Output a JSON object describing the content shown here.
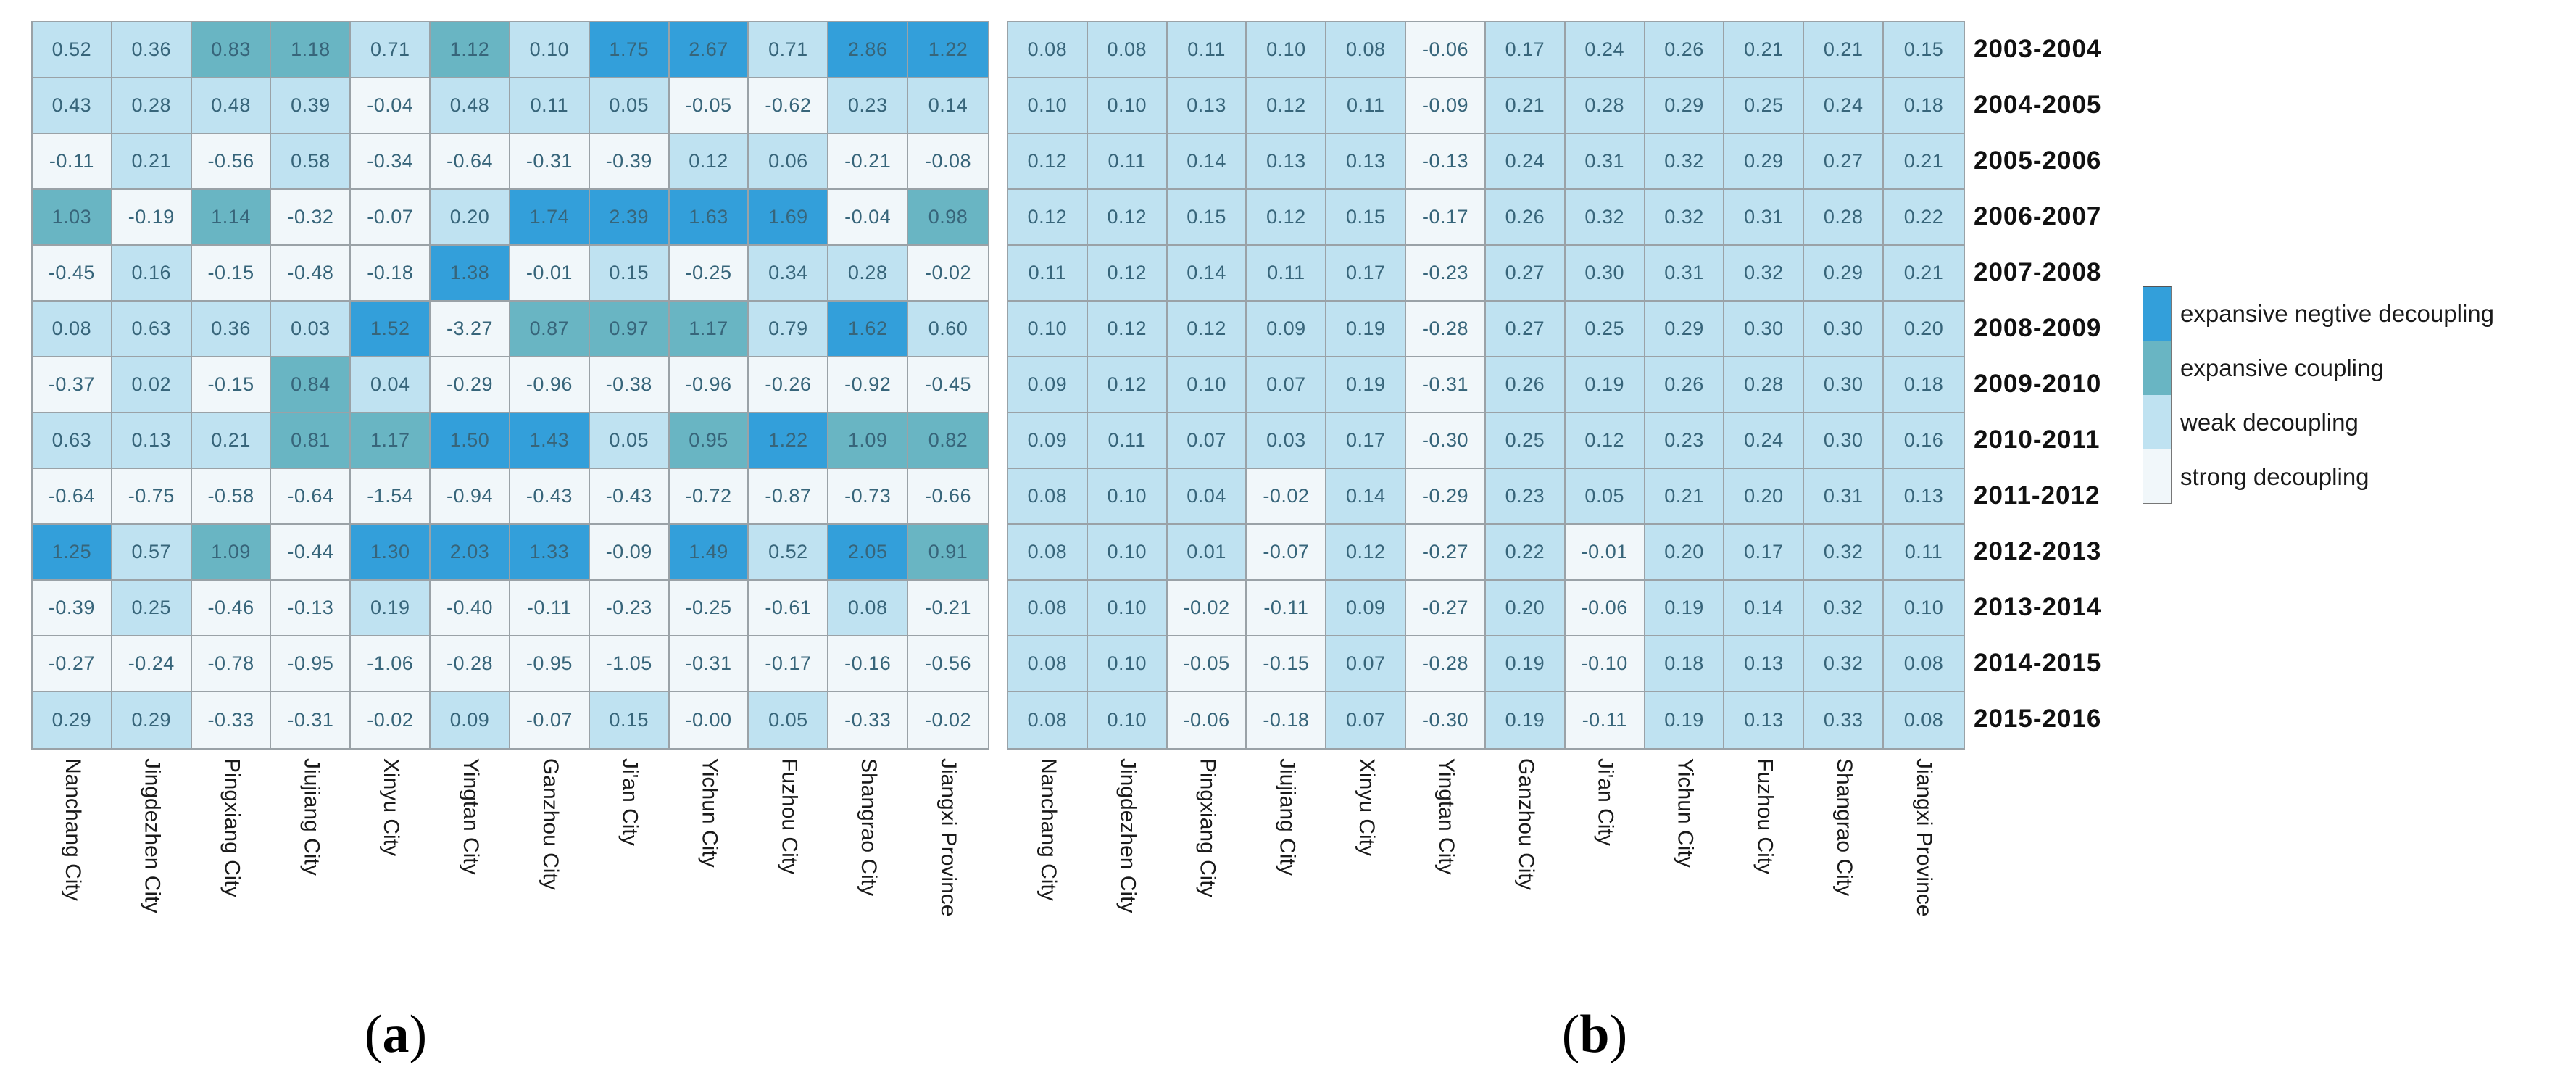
{
  "figure": {
    "captions": {
      "a": "(a)",
      "b": "(b)"
    },
    "colors": {
      "expansive_negtive_decoupling": "#339fda",
      "expansive_coupling": "#69b5c3",
      "weak_decoupling": "#bfe2f1",
      "strong_decoupling": "#f1f7fa",
      "grid_border": "#9aa2a7",
      "cell_text": "#37657a",
      "label_text": "#1a1a1a"
    },
    "category_colors": {
      "D": "#339fda",
      "T": "#69b5c3",
      "L": "#bfe2f1",
      "W": "#f1f7fa"
    },
    "category_labels": {
      "D": "expansive negtive decoupling",
      "T": "expansive coupling",
      "L": "weak decoupling",
      "W": "strong decoupling"
    },
    "legend": {
      "items": [
        {
          "label": "expansive negtive decoupling",
          "category": "D"
        },
        {
          "label": "expansive coupling",
          "category": "T"
        },
        {
          "label": "weak decoupling",
          "category": "L"
        },
        {
          "label": "strong decoupling",
          "category": "W"
        }
      ]
    }
  },
  "chart_data": [
    {
      "type": "heatmap",
      "id": "a",
      "title": "(a)",
      "columns": [
        "Nanchang City",
        "Jingdezhen City",
        "Pingxiang City",
        "Jiujiang City",
        "Xinyu City",
        "Yingtan City",
        "Ganzhou City",
        "Ji'an City",
        "Yichun City",
        "Fuzhou City",
        "Shangrao City",
        "Jiangxi Province"
      ],
      "rows": [
        "2003-2004",
        "2004-2005",
        "2005-2006",
        "2006-2007",
        "2007-2008",
        "2008-2009",
        "2009-2010",
        "2010-2011",
        "2011-2012",
        "2012-2013",
        "2013-2014",
        "2014-2015",
        "2015-2016"
      ],
      "values": [
        [
          "0.52",
          "0.36",
          "0.83",
          "1.18",
          "0.71",
          "1.12",
          "0.10",
          "1.75",
          "2.67",
          "0.71",
          "2.86",
          "1.22"
        ],
        [
          "0.43",
          "0.28",
          "0.48",
          "0.39",
          "-0.04",
          "0.48",
          "0.11",
          "0.05",
          "-0.05",
          "-0.62",
          "0.23",
          "0.14"
        ],
        [
          "-0.11",
          "0.21",
          "-0.56",
          "0.58",
          "-0.34",
          "-0.64",
          "-0.31",
          "-0.39",
          "0.12",
          "0.06",
          "-0.21",
          "-0.08"
        ],
        [
          "1.03",
          "-0.19",
          "1.14",
          "-0.32",
          "-0.07",
          "0.20",
          "1.74",
          "2.39",
          "1.63",
          "1.69",
          "-0.04",
          "0.98"
        ],
        [
          "-0.45",
          "0.16",
          "-0.15",
          "-0.48",
          "-0.18",
          "1.38",
          "-0.01",
          "0.15",
          "-0.25",
          "0.34",
          "0.28",
          "-0.02"
        ],
        [
          "0.08",
          "0.63",
          "0.36",
          "0.03",
          "1.52",
          "-3.27",
          "0.87",
          "0.97",
          "1.17",
          "0.79",
          "1.62",
          "0.60"
        ],
        [
          "-0.37",
          "0.02",
          "-0.15",
          "0.84",
          "0.04",
          "-0.29",
          "-0.96",
          "-0.38",
          "-0.96",
          "-0.26",
          "-0.92",
          "-0.45"
        ],
        [
          "0.63",
          "0.13",
          "0.21",
          "0.81",
          "1.17",
          "1.50",
          "1.43",
          "0.05",
          "0.95",
          "1.22",
          "1.09",
          "0.82"
        ],
        [
          "-0.64",
          "-0.75",
          "-0.58",
          "-0.64",
          "-1.54",
          "-0.94",
          "-0.43",
          "-0.43",
          "-0.72",
          "-0.87",
          "-0.73",
          "-0.66"
        ],
        [
          "1.25",
          "0.57",
          "1.09",
          "-0.44",
          "1.30",
          "2.03",
          "1.33",
          "-0.09",
          "1.49",
          "0.52",
          "2.05",
          "0.91"
        ],
        [
          "-0.39",
          "0.25",
          "-0.46",
          "-0.13",
          "0.19",
          "-0.40",
          "-0.11",
          "-0.23",
          "-0.25",
          "-0.61",
          "0.08",
          "-0.21"
        ],
        [
          "-0.27",
          "-0.24",
          "-0.78",
          "-0.95",
          "-1.06",
          "-0.28",
          "-0.95",
          "-1.05",
          "-0.31",
          "-0.17",
          "-0.16",
          "-0.56"
        ],
        [
          "0.29",
          "0.29",
          "-0.33",
          "-0.31",
          "-0.02",
          "0.09",
          "-0.07",
          "0.15",
          "-0.00",
          "0.05",
          "-0.33",
          "-0.02"
        ]
      ],
      "categories": [
        [
          "L",
          "L",
          "T",
          "T",
          "L",
          "T",
          "L",
          "D",
          "D",
          "L",
          "D",
          "D"
        ],
        [
          "L",
          "L",
          "L",
          "L",
          "W",
          "L",
          "L",
          "L",
          "W",
          "W",
          "L",
          "L"
        ],
        [
          "W",
          "L",
          "W",
          "L",
          "W",
          "W",
          "W",
          "W",
          "L",
          "L",
          "W",
          "W"
        ],
        [
          "T",
          "W",
          "T",
          "W",
          "W",
          "L",
          "D",
          "D",
          "D",
          "D",
          "W",
          "T"
        ],
        [
          "W",
          "L",
          "W",
          "W",
          "W",
          "D",
          "W",
          "L",
          "W",
          "L",
          "L",
          "W"
        ],
        [
          "L",
          "L",
          "L",
          "L",
          "D",
          "W",
          "T",
          "T",
          "T",
          "L",
          "D",
          "L"
        ],
        [
          "W",
          "L",
          "W",
          "T",
          "L",
          "W",
          "W",
          "W",
          "W",
          "W",
          "W",
          "W"
        ],
        [
          "L",
          "L",
          "L",
          "T",
          "T",
          "D",
          "D",
          "L",
          "T",
          "D",
          "T",
          "T"
        ],
        [
          "W",
          "W",
          "W",
          "W",
          "W",
          "W",
          "W",
          "W",
          "W",
          "W",
          "W",
          "W"
        ],
        [
          "D",
          "L",
          "T",
          "W",
          "D",
          "D",
          "D",
          "W",
          "D",
          "L",
          "D",
          "T"
        ],
        [
          "W",
          "L",
          "W",
          "W",
          "L",
          "W",
          "W",
          "W",
          "W",
          "W",
          "L",
          "W"
        ],
        [
          "W",
          "W",
          "W",
          "W",
          "W",
          "W",
          "W",
          "W",
          "W",
          "W",
          "W",
          "W"
        ],
        [
          "L",
          "L",
          "W",
          "W",
          "W",
          "L",
          "W",
          "L",
          "W",
          "L",
          "W",
          "W"
        ]
      ]
    },
    {
      "type": "heatmap",
      "id": "b",
      "title": "(b)",
      "columns": [
        "Nanchang City",
        "Jingdezhen City",
        "Pingxiang City",
        "Jiujiang City",
        "Xinyu City",
        "Yingtan City",
        "Ganzhou City",
        "Ji'an City",
        "Yichun City",
        "Fuzhou City",
        "Shangrao City",
        "Jiangxi Province"
      ],
      "rows": [
        "2003-2004",
        "2004-2005",
        "2005-2006",
        "2006-2007",
        "2007-2008",
        "2008-2009",
        "2009-2010",
        "2010-2011",
        "2011-2012",
        "2012-2013",
        "2013-2014",
        "2014-2015",
        "2015-2016"
      ],
      "values": [
        [
          "0.08",
          "0.08",
          "0.11",
          "0.10",
          "0.08",
          "-0.06",
          "0.17",
          "0.24",
          "0.26",
          "0.21",
          "0.21",
          "0.15"
        ],
        [
          "0.10",
          "0.10",
          "0.13",
          "0.12",
          "0.11",
          "-0.09",
          "0.21",
          "0.28",
          "0.29",
          "0.25",
          "0.24",
          "0.18"
        ],
        [
          "0.12",
          "0.11",
          "0.14",
          "0.13",
          "0.13",
          "-0.13",
          "0.24",
          "0.31",
          "0.32",
          "0.29",
          "0.27",
          "0.21"
        ],
        [
          "0.12",
          "0.12",
          "0.15",
          "0.12",
          "0.15",
          "-0.17",
          "0.26",
          "0.32",
          "0.32",
          "0.31",
          "0.28",
          "0.22"
        ],
        [
          "0.11",
          "0.12",
          "0.14",
          "0.11",
          "0.17",
          "-0.23",
          "0.27",
          "0.30",
          "0.31",
          "0.32",
          "0.29",
          "0.21"
        ],
        [
          "0.10",
          "0.12",
          "0.12",
          "0.09",
          "0.19",
          "-0.28",
          "0.27",
          "0.25",
          "0.29",
          "0.30",
          "0.30",
          "0.20"
        ],
        [
          "0.09",
          "0.12",
          "0.10",
          "0.07",
          "0.19",
          "-0.31",
          "0.26",
          "0.19",
          "0.26",
          "0.28",
          "0.30",
          "0.18"
        ],
        [
          "0.09",
          "0.11",
          "0.07",
          "0.03",
          "0.17",
          "-0.30",
          "0.25",
          "0.12",
          "0.23",
          "0.24",
          "0.30",
          "0.16"
        ],
        [
          "0.08",
          "0.10",
          "0.04",
          "-0.02",
          "0.14",
          "-0.29",
          "0.23",
          "0.05",
          "0.21",
          "0.20",
          "0.31",
          "0.13"
        ],
        [
          "0.08",
          "0.10",
          "0.01",
          "-0.07",
          "0.12",
          "-0.27",
          "0.22",
          "-0.01",
          "0.20",
          "0.17",
          "0.32",
          "0.11"
        ],
        [
          "0.08",
          "0.10",
          "-0.02",
          "-0.11",
          "0.09",
          "-0.27",
          "0.20",
          "-0.06",
          "0.19",
          "0.14",
          "0.32",
          "0.10"
        ],
        [
          "0.08",
          "0.10",
          "-0.05",
          "-0.15",
          "0.07",
          "-0.28",
          "0.19",
          "-0.10",
          "0.18",
          "0.13",
          "0.32",
          "0.08"
        ],
        [
          "0.08",
          "0.10",
          "-0.06",
          "-0.18",
          "0.07",
          "-0.30",
          "0.19",
          "-0.11",
          "0.19",
          "0.13",
          "0.33",
          "0.08"
        ]
      ],
      "categories": [
        [
          "L",
          "L",
          "L",
          "L",
          "L",
          "W",
          "L",
          "L",
          "L",
          "L",
          "L",
          "L"
        ],
        [
          "L",
          "L",
          "L",
          "L",
          "L",
          "W",
          "L",
          "L",
          "L",
          "L",
          "L",
          "L"
        ],
        [
          "L",
          "L",
          "L",
          "L",
          "L",
          "W",
          "L",
          "L",
          "L",
          "L",
          "L",
          "L"
        ],
        [
          "L",
          "L",
          "L",
          "L",
          "L",
          "W",
          "L",
          "L",
          "L",
          "L",
          "L",
          "L"
        ],
        [
          "L",
          "L",
          "L",
          "L",
          "L",
          "W",
          "L",
          "L",
          "L",
          "L",
          "L",
          "L"
        ],
        [
          "L",
          "L",
          "L",
          "L",
          "L",
          "W",
          "L",
          "L",
          "L",
          "L",
          "L",
          "L"
        ],
        [
          "L",
          "L",
          "L",
          "L",
          "L",
          "W",
          "L",
          "L",
          "L",
          "L",
          "L",
          "L"
        ],
        [
          "L",
          "L",
          "L",
          "L",
          "L",
          "W",
          "L",
          "L",
          "L",
          "L",
          "L",
          "L"
        ],
        [
          "L",
          "L",
          "L",
          "W",
          "L",
          "W",
          "L",
          "L",
          "L",
          "L",
          "L",
          "L"
        ],
        [
          "L",
          "L",
          "L",
          "W",
          "L",
          "W",
          "L",
          "W",
          "L",
          "L",
          "L",
          "L"
        ],
        [
          "L",
          "L",
          "W",
          "W",
          "L",
          "W",
          "L",
          "W",
          "L",
          "L",
          "L",
          "L"
        ],
        [
          "L",
          "L",
          "W",
          "W",
          "L",
          "W",
          "L",
          "W",
          "L",
          "L",
          "L",
          "L"
        ],
        [
          "L",
          "L",
          "W",
          "W",
          "L",
          "W",
          "L",
          "W",
          "L",
          "L",
          "L",
          "L"
        ]
      ]
    }
  ]
}
